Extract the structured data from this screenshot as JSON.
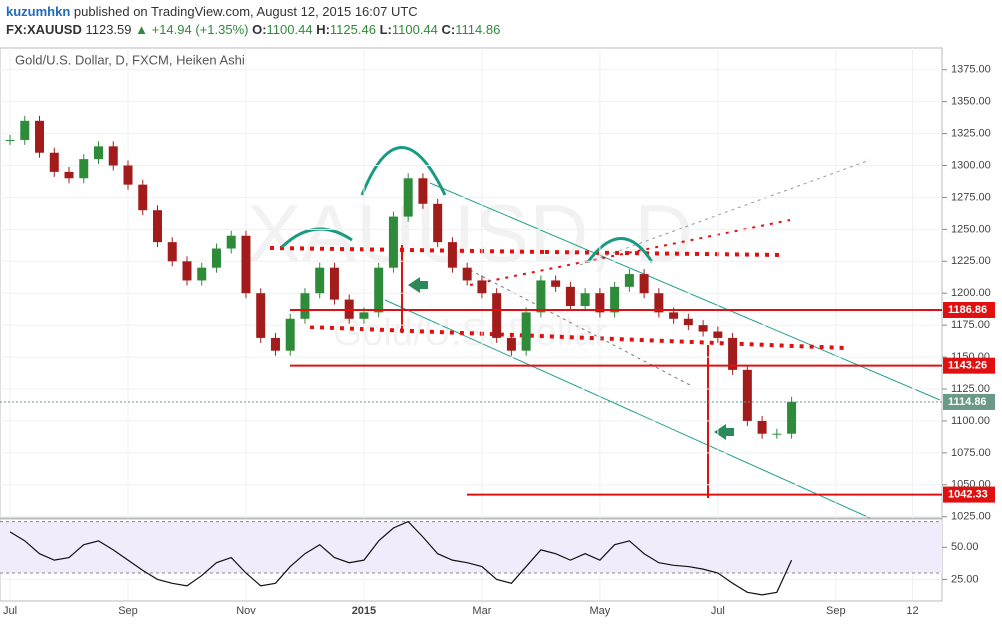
{
  "header": {
    "author": "kuzumhkn",
    "published": "published on TradingView.com, August 12, 2015 16:07 UTC",
    "symbol": "FX:XAUUSD",
    "last": "1123.59",
    "change": "+14.94 (+1.35%)",
    "ohlc": [
      {
        "label": "O:",
        "value": "1100.44"
      },
      {
        "label": "H:",
        "value": "1125.46"
      },
      {
        "label": "L:",
        "value": "1100.44"
      },
      {
        "label": "C:",
        "value": "1114.86"
      }
    ]
  },
  "chart_data": [
    {
      "type": "candlestick",
      "title": "Gold/U.S. Dollar, D, FXCM, Heiken Ashi",
      "watermark": [
        "XAUUSD, D",
        "Gold/U.S. Dollar"
      ],
      "x": [
        0,
        0.25,
        0.5,
        0.75,
        1,
        1.25,
        1.5,
        1.75,
        2,
        2.25,
        2.5,
        2.75,
        3,
        3.25,
        3.5,
        3.75,
        4,
        4.25,
        4.5,
        4.75,
        5,
        5.25,
        5.5,
        5.75,
        6,
        6.25,
        6.5,
        6.75,
        7,
        7.25,
        7.5,
        7.75,
        8,
        8.25,
        8.5,
        8.75,
        9,
        9.25,
        9.5,
        9.75,
        10,
        10.25,
        10.5,
        10.75,
        11,
        11.25,
        11.5,
        11.75,
        12,
        12.25,
        12.5,
        12.75,
        13,
        13.25
      ],
      "series": [
        {
          "up_color": "#2e8b3a",
          "down_color": "#a31c1c",
          "values": [
            1320,
            1335,
            1310,
            1295,
            1290,
            1305,
            1315,
            1300,
            1285,
            1265,
            1240,
            1225,
            1210,
            1220,
            1235,
            1245,
            1200,
            1165,
            1155,
            1180,
            1200,
            1220,
            1195,
            1180,
            1185,
            1220,
            1260,
            1290,
            1270,
            1240,
            1220,
            1210,
            1200,
            1165,
            1155,
            1185,
            1210,
            1205,
            1190,
            1200,
            1185,
            1205,
            1215,
            1200,
            1185,
            1180,
            1175,
            1170,
            1165,
            1140,
            1100,
            1090,
            1090,
            1115
          ]
        }
      ],
      "xlim": [
        -0.17,
        15.8
      ],
      "xticks": [
        {
          "value": 0,
          "label": "Jul"
        },
        {
          "value": 2,
          "label": "Sep"
        },
        {
          "value": 4,
          "label": "Nov"
        },
        {
          "value": 6,
          "label": "2015"
        },
        {
          "value": 8,
          "label": "Mar"
        },
        {
          "value": 10,
          "label": "May"
        },
        {
          "value": 12,
          "label": "Jul"
        },
        {
          "value": 14,
          "label": "Sep"
        },
        {
          "value": 15.3,
          "label": "12"
        }
      ],
      "ylim": [
        1024,
        1392
      ],
      "yticks": [
        {
          "value": 1025,
          "label": "1025.00"
        },
        {
          "value": 1050,
          "label": "1050.00"
        },
        {
          "value": 1075,
          "label": "1075.00"
        },
        {
          "value": 1100,
          "label": "1100.00"
        },
        {
          "value": 1125,
          "label": "1125.00"
        },
        {
          "value": 1150,
          "label": "1150.00"
        },
        {
          "value": 1175,
          "label": "1175.00"
        },
        {
          "value": 1200,
          "label": "1200.00"
        },
        {
          "value": 1225,
          "label": "1225.00"
        },
        {
          "value": 1250,
          "label": "1250.00"
        },
        {
          "value": 1275,
          "label": "1275.00"
        },
        {
          "value": 1300,
          "label": "1300.00"
        },
        {
          "value": 1325,
          "label": "1325.00"
        },
        {
          "value": 1350,
          "label": "1350.00"
        },
        {
          "value": 1375,
          "label": "1375.00"
        }
      ],
      "price_lines": [
        {
          "value": 1186.86,
          "color": "#e01010"
        },
        {
          "value": 1143.26,
          "color": "#e01010"
        },
        {
          "value": 1114.86,
          "color": "#6a9a86"
        },
        {
          "value": 1042.33,
          "color": "#e01010"
        }
      ],
      "grid": true
    },
    {
      "type": "line",
      "x": [
        0,
        0.25,
        0.5,
        0.75,
        1,
        1.25,
        1.5,
        1.75,
        2,
        2.25,
        2.5,
        2.75,
        3,
        3.25,
        3.5,
        3.75,
        4,
        4.25,
        4.5,
        4.75,
        5,
        5.25,
        5.5,
        5.75,
        6,
        6.25,
        6.5,
        6.75,
        7,
        7.25,
        7.5,
        7.75,
        8,
        8.25,
        8.5,
        8.75,
        9,
        9.25,
        9.5,
        9.75,
        10,
        10.25,
        10.5,
        10.75,
        11,
        11.25,
        11.5,
        11.75,
        12,
        12.25,
        12.5,
        12.75,
        13,
        13.25
      ],
      "series": [
        {
          "color": "#111111",
          "values": [
            62,
            55,
            45,
            40,
            42,
            52,
            55,
            48,
            40,
            32,
            25,
            22,
            20,
            28,
            38,
            42,
            30,
            20,
            22,
            35,
            45,
            52,
            42,
            38,
            40,
            55,
            65,
            70,
            58,
            45,
            40,
            38,
            35,
            25,
            22,
            35,
            48,
            45,
            40,
            45,
            40,
            52,
            55,
            45,
            38,
            36,
            35,
            33,
            30,
            22,
            15,
            13,
            15,
            40
          ]
        }
      ],
      "xlim": [
        -0.17,
        15.8
      ],
      "ylim": [
        9,
        72
      ],
      "bands": [
        30,
        70
      ],
      "band_color": "#f1ecfb",
      "yticks": [
        {
          "value": 25,
          "label": "25.00"
        },
        {
          "value": 50,
          "label": "50.00"
        }
      ],
      "grid": true
    }
  ]
}
